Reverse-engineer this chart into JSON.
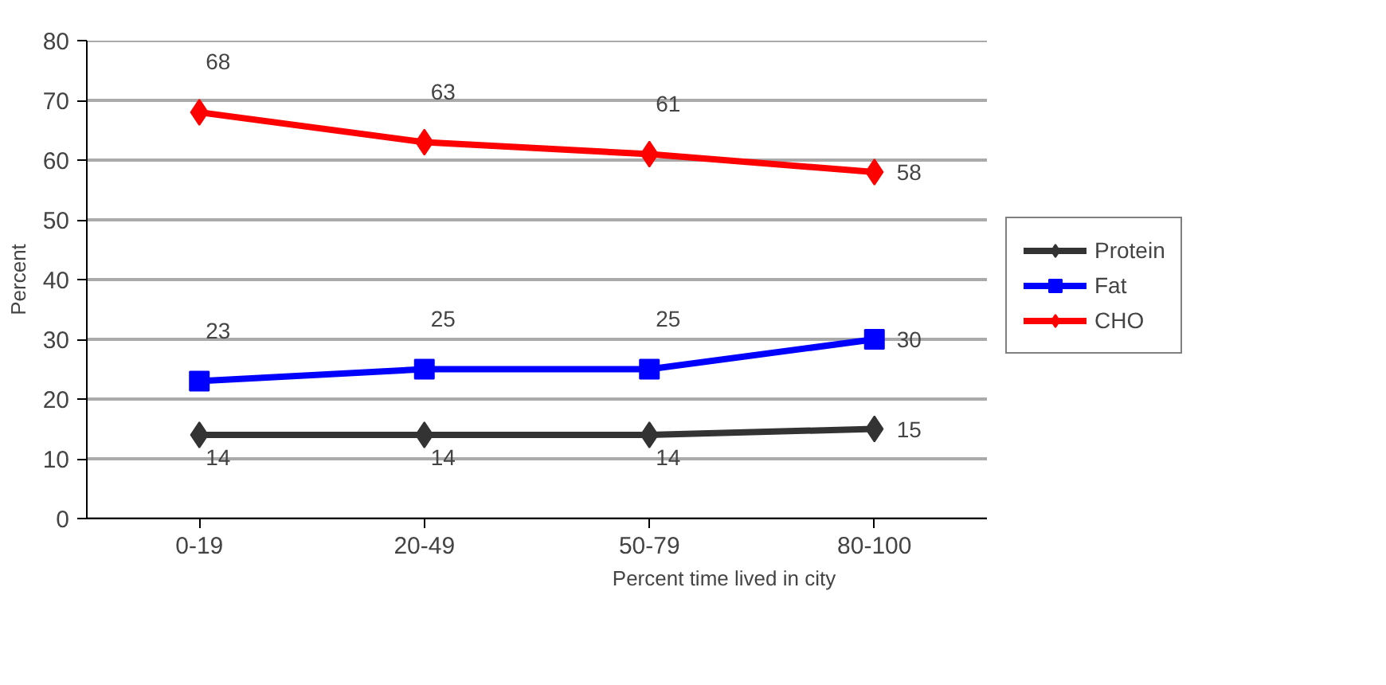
{
  "chart_data": {
    "type": "line",
    "xlabel": "Percent time lived in city",
    "ylabel": "Percent",
    "categories": [
      "0-19",
      "20-49",
      "50-79",
      "80-100"
    ],
    "series": [
      {
        "name": "Protein",
        "color": "#333333",
        "marker": "diamond",
        "values": [
          14,
          14,
          14,
          15
        ]
      },
      {
        "name": "Fat",
        "color": "#0000ff",
        "marker": "square",
        "values": [
          23,
          25,
          25,
          30
        ]
      },
      {
        "name": "CHO",
        "color": "#ff0000",
        "marker": "diamond",
        "values": [
          68,
          63,
          61,
          58
        ]
      }
    ],
    "ylim": [
      0,
      80
    ],
    "yticks": [
      0,
      10,
      20,
      30,
      40,
      50,
      60,
      70,
      80
    ],
    "grid": "y",
    "legend": "right",
    "data_labels": true
  }
}
